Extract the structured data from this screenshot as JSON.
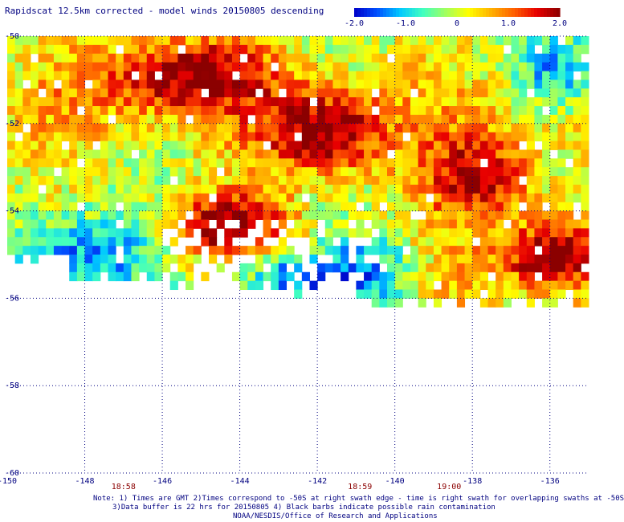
{
  "title": "Rapidscat 12.5km corrected - model winds 20150805 descending",
  "colorbar": {
    "min": -2.0,
    "max": 2.0,
    "tick_labels": [
      "-2.0",
      "-1.0",
      "0",
      "1.0",
      "2.0"
    ],
    "tick_values": [
      -2.0,
      -1.0,
      0,
      1.0,
      2.0
    ],
    "colors": [
      "#0000c8",
      "#0050ff",
      "#00c8ff",
      "#40ffc0",
      "#a0ff60",
      "#ffff00",
      "#ffb000",
      "#ff6000",
      "#e80000",
      "#8b0000"
    ]
  },
  "chart_data": {
    "type": "heatmap",
    "title": "Rapidscat 12.5km corrected - model winds 20150805 descending",
    "x_range": [
      -150,
      -135
    ],
    "y_range": [
      -60,
      -50
    ],
    "x_ticks": [
      -150,
      -148,
      -146,
      -144,
      -142,
      -140,
      -138,
      -136
    ],
    "x_tick_labels": [
      "-150",
      "-148",
      "-146",
      "-144",
      "-142",
      "-140",
      "-138",
      "-136"
    ],
    "y_ticks": [
      -50,
      -52,
      -54,
      -56,
      -58,
      -60
    ],
    "y_tick_labels": [
      "-50",
      "-52",
      "-54",
      "-56",
      "-58",
      "-60"
    ],
    "grid": true,
    "time_labels": [
      {
        "text": "18:58",
        "lon": -147.0
      },
      {
        "text": "18:59",
        "lon": -140.9
      },
      {
        "text": "19:00",
        "lon": -138.6
      }
    ],
    "value_range": [
      -2.0,
      2.0
    ],
    "coverage_rows": [
      {
        "lat": -50.0,
        "lon_start": -150.0,
        "lon_end": -135.0
      },
      {
        "lat": -55.0,
        "lon_start": -150.0,
        "lon_end": -135.0
      },
      {
        "lat": -55.5,
        "lon_start": -148.5,
        "lon_end": -135.0
      },
      {
        "lat": -56.0,
        "lon_start": -144.0,
        "lon_end": -135.0
      }
    ],
    "regions": [
      {
        "name": "strong positive",
        "lon": [
          -147.5,
          -143.5
        ],
        "lat": [
          -51.5,
          -50.2
        ],
        "value": 2.0
      },
      {
        "name": "strong positive",
        "lon": [
          -143.0,
          -140.5
        ],
        "lat": [
          -53.0,
          -51.5
        ],
        "value": 2.0
      },
      {
        "name": "strong positive",
        "lon": [
          -146.0,
          -143.0
        ],
        "lat": [
          -54.8,
          -53.8
        ],
        "value": 2.0
      },
      {
        "name": "strong positive",
        "lon": [
          -139.0,
          -136.5
        ],
        "lat": [
          -54.0,
          -52.5
        ],
        "value": 1.8
      },
      {
        "name": "strong positive",
        "lon": [
          -137.0,
          -135.0
        ],
        "lat": [
          -55.5,
          -54.5
        ],
        "value": 2.0
      },
      {
        "name": "negative",
        "lon": [
          -150.0,
          -146.0
        ],
        "lat": [
          -55.8,
          -54.3
        ],
        "value": -1.8
      },
      {
        "name": "negative",
        "lon": [
          -144.0,
          -141.5
        ],
        "lat": [
          -56.0,
          -55.0
        ],
        "value": -1.8
      },
      {
        "name": "negative",
        "lon": [
          -141.5,
          -139.5
        ],
        "lat": [
          -56.0,
          -54.8
        ],
        "value": -1.4
      },
      {
        "name": "negative",
        "lon": [
          -136.5,
          -135.0
        ],
        "lat": [
          -51.5,
          -50.2
        ],
        "value": -1.2
      }
    ]
  },
  "notes": {
    "line1": "Note: 1) Times are GMT 2)Times correspond to -50S at right swath edge - time is right swath for overlapping swaths at -50S",
    "line2": "3)Data buffer is 22 hrs for 20150805 4) Black barbs indicate possible rain contamination",
    "line3": "NOAA/NESDIS/Office of Research and Applications"
  }
}
